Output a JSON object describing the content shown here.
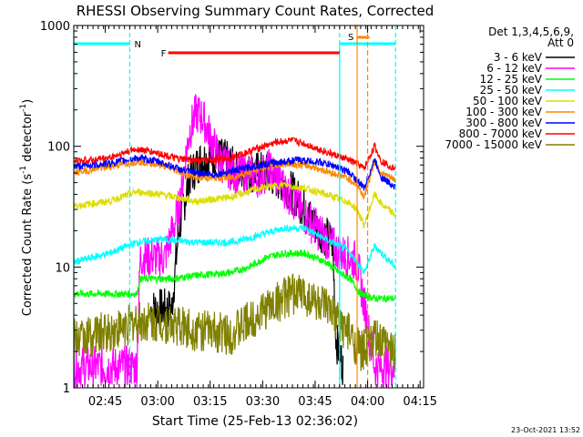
{
  "chart_data": {
    "type": "line",
    "title": "RHESSI Observing Summary Count Rates, Corrected",
    "xlabel": "Start Time (25-Feb-13 02:36:02)",
    "ylabel_main": "Corrected Count Rate (s",
    "ylabel_sup1": "-1",
    "ylabel_mid": " detector",
    "ylabel_sup2": "-1",
    "ylabel_end": ")",
    "yscale": "log",
    "ylim": [
      1,
      1000
    ],
    "y_ticks": [
      {
        "v": 1,
        "label": "1"
      },
      {
        "v": 10,
        "label": "10"
      },
      {
        "v": 100,
        "label": "100"
      },
      {
        "v": 1000,
        "label": "1000"
      }
    ],
    "xlim_minutes": [
      0,
      100
    ],
    "x_ticks": [
      {
        "m": 9,
        "label": "02:45"
      },
      {
        "m": 24,
        "label": "03:00"
      },
      {
        "m": 39,
        "label": "03:15"
      },
      {
        "m": 54,
        "label": "03:30"
      },
      {
        "m": 69,
        "label": "03:45"
      },
      {
        "m": 84,
        "label": "04:00"
      },
      {
        "m": 99,
        "label": "04:15"
      }
    ],
    "legend_header1": "Det 1,3,4,5,6,9,",
    "legend_header2": "Att 0",
    "series": [
      {
        "name": "3 - 6 keV",
        "color": "#000000",
        "points": [
          [
            22,
            4.5
          ],
          [
            28,
            4.5
          ],
          [
            30,
            20
          ],
          [
            33,
            55
          ],
          [
            36,
            75
          ],
          [
            40,
            85
          ],
          [
            44,
            75
          ],
          [
            47,
            60
          ],
          [
            50,
            60
          ],
          [
            53,
            62
          ],
          [
            56,
            58
          ],
          [
            60,
            50
          ],
          [
            63,
            40
          ],
          [
            66,
            30
          ],
          [
            69,
            22
          ],
          [
            72,
            18
          ],
          [
            74,
            16
          ],
          [
            75,
            2.5
          ],
          [
            77,
            1.5
          ]
        ]
      },
      {
        "name": "6 - 12 keV",
        "color": "#ff00ff",
        "points": [
          [
            0,
            1.5
          ],
          [
            18,
            1.5
          ],
          [
            19,
            12
          ],
          [
            26,
            12
          ],
          [
            30,
            30
          ],
          [
            33,
            130
          ],
          [
            35,
            190
          ],
          [
            37,
            170
          ],
          [
            40,
            100
          ],
          [
            42,
            75
          ],
          [
            46,
            60
          ],
          [
            50,
            60
          ],
          [
            53,
            55
          ],
          [
            56,
            65
          ],
          [
            58,
            55
          ],
          [
            61,
            42
          ],
          [
            64,
            32
          ],
          [
            67,
            25
          ],
          [
            70,
            20
          ],
          [
            73,
            16
          ],
          [
            76,
            13
          ],
          [
            79,
            12
          ],
          [
            81,
            11
          ],
          [
            86,
            1.5
          ],
          [
            92,
            1.5
          ]
        ]
      },
      {
        "name": "12 - 25 keV",
        "color": "#00ff00",
        "points": [
          [
            0,
            6
          ],
          [
            18,
            6
          ],
          [
            19,
            8
          ],
          [
            28,
            8
          ],
          [
            35,
            8.5
          ],
          [
            45,
            9
          ],
          [
            50,
            10
          ],
          [
            55,
            12
          ],
          [
            60,
            13
          ],
          [
            66,
            13
          ],
          [
            72,
            11
          ],
          [
            76,
            9
          ],
          [
            79,
            8
          ],
          [
            82,
            6
          ],
          [
            86,
            5.5
          ],
          [
            92,
            5.5
          ]
        ]
      },
      {
        "name": "25 - 50 keV",
        "color": "#00ffff",
        "points": [
          [
            0,
            11
          ],
          [
            10,
            13
          ],
          [
            18,
            16
          ],
          [
            25,
            17
          ],
          [
            35,
            16
          ],
          [
            45,
            16
          ],
          [
            52,
            18
          ],
          [
            60,
            21
          ],
          [
            66,
            21
          ],
          [
            72,
            17
          ],
          [
            78,
            14
          ],
          [
            81,
            11
          ],
          [
            83,
            9
          ],
          [
            86,
            15
          ],
          [
            88,
            13
          ],
          [
            92,
            10
          ]
        ]
      },
      {
        "name": "50 - 100 keV",
        "color": "#dddd00",
        "points": [
          [
            0,
            32
          ],
          [
            10,
            35
          ],
          [
            18,
            42
          ],
          [
            25,
            40
          ],
          [
            35,
            35
          ],
          [
            45,
            38
          ],
          [
            53,
            45
          ],
          [
            60,
            48
          ],
          [
            66,
            45
          ],
          [
            72,
            40
          ],
          [
            78,
            35
          ],
          [
            81,
            30
          ],
          [
            83,
            22
          ],
          [
            86,
            40
          ],
          [
            88,
            33
          ],
          [
            92,
            27
          ]
        ]
      },
      {
        "name": "100 - 300 keV",
        "color": "#ff8800",
        "points": [
          [
            0,
            60
          ],
          [
            10,
            68
          ],
          [
            18,
            75
          ],
          [
            25,
            70
          ],
          [
            35,
            55
          ],
          [
            45,
            55
          ],
          [
            55,
            68
          ],
          [
            62,
            72
          ],
          [
            68,
            68
          ],
          [
            74,
            60
          ],
          [
            78,
            55
          ],
          [
            81,
            48
          ],
          [
            83,
            38
          ],
          [
            86,
            75
          ],
          [
            88,
            60
          ],
          [
            92,
            52
          ]
        ]
      },
      {
        "name": "300 - 800 keV",
        "color": "#0000ff",
        "points": [
          [
            0,
            68
          ],
          [
            10,
            72
          ],
          [
            18,
            80
          ],
          [
            24,
            75
          ],
          [
            32,
            62
          ],
          [
            40,
            58
          ],
          [
            48,
            65
          ],
          [
            56,
            72
          ],
          [
            64,
            77
          ],
          [
            70,
            74
          ],
          [
            75,
            68
          ],
          [
            79,
            60
          ],
          [
            81,
            52
          ],
          [
            83,
            45
          ],
          [
            86,
            78
          ],
          [
            88,
            55
          ],
          [
            92,
            46
          ]
        ]
      },
      {
        "name": "800 - 7000 keV",
        "color": "#ff0000",
        "points": [
          [
            0,
            75
          ],
          [
            10,
            80
          ],
          [
            18,
            95
          ],
          [
            24,
            88
          ],
          [
            30,
            78
          ],
          [
            38,
            76
          ],
          [
            45,
            80
          ],
          [
            52,
            95
          ],
          [
            58,
            108
          ],
          [
            62,
            112
          ],
          [
            66,
            105
          ],
          [
            72,
            90
          ],
          [
            78,
            78
          ],
          [
            81,
            72
          ],
          [
            83,
            65
          ],
          [
            86,
            100
          ],
          [
            88,
            75
          ],
          [
            92,
            65
          ]
        ]
      },
      {
        "name": "7000 - 15000 keV",
        "color": "#808000",
        "points": [
          [
            0,
            2.5
          ],
          [
            12,
            3
          ],
          [
            18,
            3.5
          ],
          [
            25,
            3.5
          ],
          [
            35,
            3
          ],
          [
            45,
            2.8
          ],
          [
            50,
            3.5
          ],
          [
            55,
            4.5
          ],
          [
            60,
            5.5
          ],
          [
            64,
            6.2
          ],
          [
            68,
            5.5
          ],
          [
            72,
            4.5
          ],
          [
            78,
            3
          ],
          [
            82,
            2
          ],
          [
            86,
            2.5
          ],
          [
            92,
            2
          ]
        ]
      }
    ],
    "annotations": {
      "N_label": "N",
      "F_label": "F",
      "S_label": "S",
      "night_intervals": [
        [
          0,
          16
        ],
        [
          76,
          92
        ]
      ],
      "flare_interval": [
        27,
        76
      ],
      "saa_interval": [
        81,
        84.5
      ],
      "night_dash_minutes": [
        16,
        76,
        92
      ],
      "saa_dash_minutes": [
        81,
        84
      ]
    }
  },
  "footer_timestamp": "23-Oct-2021 13:52"
}
